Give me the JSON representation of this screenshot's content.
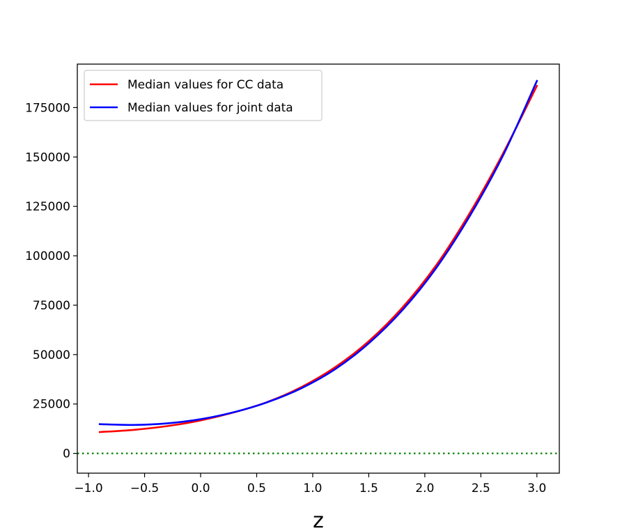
{
  "chart_data": {
    "type": "line",
    "title": "",
    "xlabel": "z",
    "ylabel": "",
    "xlim": [
      -1.1,
      3.2
    ],
    "ylim": [
      -10000,
      197000
    ],
    "xticks": [
      -1.0,
      -0.5,
      0.0,
      0.5,
      1.0,
      1.5,
      2.0,
      2.5,
      3.0
    ],
    "xtick_labels": [
      "−1.0",
      "−0.5",
      "0.0",
      "0.5",
      "1.0",
      "1.5",
      "2.0",
      "2.5",
      "3.0"
    ],
    "yticks": [
      0,
      25000,
      50000,
      75000,
      100000,
      125000,
      150000,
      175000
    ],
    "ytick_labels": [
      "0",
      "25000",
      "50000",
      "75000",
      "100000",
      "125000",
      "150000",
      "175000"
    ],
    "grid": false,
    "legend_position": "top-left",
    "hline": {
      "y": 0,
      "color": "#008000",
      "style": "dotted"
    },
    "series": [
      {
        "name": "Median values for CC data",
        "color": "#ff0000",
        "x": [
          -0.9,
          -0.6,
          -0.3,
          0.0,
          0.3,
          0.6,
          0.9,
          1.2,
          1.5,
          1.8,
          2.1,
          2.4,
          2.7,
          3.0
        ],
        "y": [
          10800,
          11900,
          13800,
          16700,
          20800,
          26100,
          33600,
          43600,
          56800,
          73800,
          95100,
          121500,
          152000,
          186000
        ]
      },
      {
        "name": "Median values for joint data",
        "color": "#0000ff",
        "x": [
          -0.9,
          -0.6,
          -0.3,
          0.0,
          0.3,
          0.6,
          0.9,
          1.2,
          1.5,
          1.8,
          2.1,
          2.4,
          2.7,
          3.0
        ],
        "y": [
          14800,
          14400,
          15200,
          17300,
          20900,
          26000,
          33000,
          42600,
          55700,
          72500,
          93700,
          120000,
          151000,
          188500
        ]
      }
    ]
  }
}
